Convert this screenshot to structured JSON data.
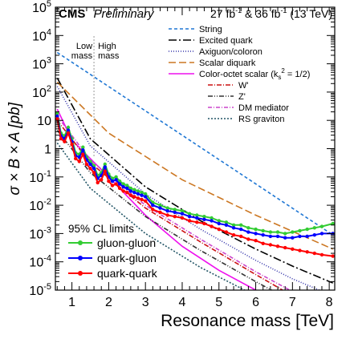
{
  "chart_data": {
    "type": "line",
    "header": {
      "experiment": "CMS",
      "status": "Preliminary",
      "lumi_text": "27 fb",
      "lumi_exp1": "-1",
      "lumi_mid": " & 36 fb",
      "lumi_exp2": "-1",
      "energy": " (13 TeV)"
    },
    "xlabel": "Resonance mass [TeV]",
    "ylabel": "σ × B × A [pb]",
    "xlim": [
      0.55,
      8.15
    ],
    "ylim_log10": [
      -5,
      5
    ],
    "xticks": [
      1,
      2,
      3,
      4,
      5,
      6,
      7,
      8
    ],
    "xtick_labels": [
      "1",
      "2",
      "3",
      "4",
      "5",
      "6",
      "7",
      "8"
    ],
    "yticks_exp": [
      -5,
      -4,
      -3,
      -2,
      -1,
      0,
      1,
      2,
      3,
      4,
      5
    ],
    "ytick_labels": [
      "10",
      "10",
      "10",
      "10",
      "10",
      "1",
      "10",
      "10",
      "10",
      "10",
      "10"
    ],
    "ytick_exps": [
      "-5",
      "-4",
      "-3",
      "-2",
      "-1",
      "",
      "",
      "2",
      "3",
      "4",
      "5"
    ],
    "region_labels": {
      "low": [
        "Low",
        "mass"
      ],
      "high": [
        "High",
        "mass"
      ],
      "boundary_x": 1.6
    },
    "limits_title": "95% CL limits",
    "limit_series": [
      {
        "name": "gluon-gluon",
        "color": "#33cc33",
        "x": [
          0.6,
          0.7,
          0.8,
          0.9,
          1.0,
          1.1,
          1.2,
          1.3,
          1.4,
          1.5,
          1.6,
          1.7,
          1.8,
          1.9,
          2.0,
          2.1,
          2.2,
          2.3,
          2.4,
          2.5,
          2.6,
          2.7,
          2.8,
          2.9,
          3.0,
          3.2,
          3.4,
          3.6,
          3.8,
          4.0,
          4.2,
          4.4,
          4.6,
          4.8,
          5.0,
          5.2,
          5.4,
          5.6,
          5.8,
          6.0,
          6.2,
          6.4,
          6.6,
          6.8,
          7.0,
          7.2,
          7.4,
          7.6,
          7.8,
          8.1
        ],
        "logy": [
          1.25,
          0.55,
          0.45,
          0.75,
          0.35,
          -0.15,
          -0.2,
          0.05,
          -0.3,
          -0.45,
          -0.6,
          -0.95,
          -0.85,
          -0.55,
          -0.9,
          -1.05,
          -1.0,
          -1.15,
          -1.25,
          -1.3,
          -1.4,
          -1.45,
          -1.5,
          -1.55,
          -1.6,
          -1.9,
          -2.0,
          -2.1,
          -2.15,
          -2.2,
          -2.3,
          -2.35,
          -2.4,
          -2.45,
          -2.55,
          -2.6,
          -2.7,
          -2.7,
          -2.8,
          -2.85,
          -2.9,
          -2.95,
          -2.95,
          -3.0,
          -2.95,
          -2.9,
          -2.85,
          -2.8,
          -2.75,
          -2.65
        ]
      },
      {
        "name": "quark-gluon",
        "color": "#0000ff",
        "x": [
          0.6,
          0.7,
          0.8,
          0.9,
          1.0,
          1.1,
          1.2,
          1.3,
          1.4,
          1.5,
          1.6,
          1.7,
          1.8,
          1.9,
          2.0,
          2.1,
          2.2,
          2.3,
          2.4,
          2.5,
          2.6,
          2.7,
          2.8,
          2.9,
          3.0,
          3.2,
          3.4,
          3.6,
          3.8,
          4.0,
          4.2,
          4.4,
          4.6,
          4.8,
          5.0,
          5.2,
          5.4,
          5.6,
          5.8,
          6.0,
          6.2,
          6.4,
          6.6,
          6.8,
          7.0,
          7.2,
          7.4,
          7.6,
          7.8,
          8.1
        ],
        "logy": [
          1.15,
          0.45,
          0.35,
          0.65,
          0.25,
          -0.25,
          -0.3,
          -0.05,
          -0.4,
          -0.55,
          -0.7,
          -1.05,
          -0.95,
          -0.65,
          -1.0,
          -1.15,
          -1.1,
          -1.25,
          -1.35,
          -1.4,
          -1.5,
          -1.55,
          -1.6,
          -1.65,
          -1.7,
          -2.0,
          -2.1,
          -2.2,
          -2.25,
          -2.3,
          -2.4,
          -2.45,
          -2.5,
          -2.55,
          -2.65,
          -2.7,
          -2.8,
          -2.85,
          -2.95,
          -3.0,
          -3.05,
          -3.1,
          -3.1,
          -3.15,
          -3.15,
          -3.1,
          -3.1,
          -3.05,
          -3.0,
          -3.0
        ]
      },
      {
        "name": "quark-quark",
        "color": "#ff0000",
        "x": [
          0.6,
          0.7,
          0.8,
          0.9,
          1.0,
          1.1,
          1.2,
          1.3,
          1.4,
          1.5,
          1.6,
          1.7,
          1.8,
          1.9,
          2.0,
          2.1,
          2.2,
          2.3,
          2.4,
          2.5,
          2.6,
          2.7,
          2.8,
          2.9,
          3.0,
          3.2,
          3.4,
          3.6,
          3.8,
          4.0,
          4.2,
          4.4,
          4.6,
          4.8,
          5.0,
          5.2,
          5.4,
          5.6,
          5.8,
          6.0,
          6.2,
          6.4,
          6.6,
          6.8,
          7.0,
          7.2,
          7.4,
          7.6,
          7.8,
          8.1
        ],
        "logy": [
          1.05,
          0.35,
          0.25,
          0.55,
          0.15,
          -0.35,
          -0.45,
          -0.2,
          -0.55,
          -0.7,
          -0.85,
          -1.2,
          -1.1,
          -0.8,
          -1.15,
          -1.3,
          -1.25,
          -1.4,
          -1.5,
          -1.55,
          -1.65,
          -1.7,
          -1.75,
          -1.8,
          -1.85,
          -2.15,
          -2.25,
          -2.35,
          -2.4,
          -2.45,
          -2.55,
          -2.6,
          -2.65,
          -2.75,
          -2.85,
          -2.95,
          -3.05,
          -3.1,
          -3.2,
          -3.25,
          -3.35,
          -3.4,
          -3.45,
          -3.5,
          -3.55,
          -3.6,
          -3.65,
          -3.7,
          -3.75,
          -3.8
        ]
      }
    ],
    "theory_series": [
      {
        "name": "String",
        "color": "#1f77d4",
        "dash": "4,3",
        "legend_x": 248,
        "x": [
          0.6,
          8.1
        ],
        "logy": [
          3.4,
          -3.05
        ]
      },
      {
        "name": "Excited quark",
        "color": "#000000",
        "dash": "10,3,2,3",
        "legend_x": 248,
        "x": [
          0.6,
          1.5,
          3.0,
          4.5,
          6.0,
          7.0,
          8.1
        ],
        "logy": [
          2.5,
          0.35,
          -1.35,
          -2.55,
          -3.55,
          -4.15,
          -4.75
        ]
      },
      {
        "name": "Axiguon/coloron",
        "color": "#3333aa",
        "dash": "1,2",
        "legend_x": 248,
        "x": [
          0.6,
          1.5,
          3.0,
          4.5,
          6.0,
          7.0,
          8.1
        ],
        "logy": [
          2.2,
          0.1,
          -1.6,
          -2.85,
          -3.95,
          -4.6,
          -5.2
        ]
      },
      {
        "name": "Scalar diquark",
        "color": "#cc7722",
        "dash": "9,4",
        "legend_x": 248,
        "x": [
          0.6,
          2.0,
          4.0,
          6.0,
          8.1
        ],
        "logy": [
          2.35,
          0.55,
          -1.1,
          -2.35,
          -3.55
        ]
      },
      {
        "name": "Color-octet scalar (k",
        "name_sub": "s",
        "name_sup": "2",
        "name_tail": " = 1/2)",
        "color": "#ee11ee",
        "dash": "",
        "legend_x": 248,
        "x": [
          0.6,
          1.0,
          2.0,
          3.0,
          4.0,
          5.0,
          6.0,
          6.6
        ],
        "logy": [
          1.4,
          0.3,
          -1.0,
          -2.35,
          -3.45,
          -4.3,
          -5.0,
          -5.4
        ]
      },
      {
        "name": "W'",
        "color": "#cc1111",
        "dash": "6,2,1,2",
        "legend_x": 297,
        "x": [
          0.6,
          1.5,
          3.0,
          4.5,
          6.0,
          7.0
        ],
        "logy": [
          1.0,
          -0.5,
          -2.1,
          -3.3,
          -4.45,
          -5.2
        ]
      },
      {
        "name": "Z'",
        "color": "#333333",
        "dash": "6,2,1,2,1,2",
        "legend_x": 297,
        "x": [
          0.6,
          1.5,
          3.0,
          4.5,
          6.0,
          7.0
        ],
        "logy": [
          0.65,
          -0.85,
          -2.4,
          -3.6,
          -4.7,
          -5.4
        ]
      },
      {
        "name": "DM mediator",
        "color": "#cc44cc",
        "dash": "5,2,1,2",
        "legend_x": 297,
        "x": [
          0.6,
          1.5,
          3.0,
          4.5,
          6.0,
          7.0
        ],
        "logy": [
          1.15,
          -0.4,
          -2.0,
          -3.2,
          -4.35,
          -5.05
        ]
      },
      {
        "name": "RS graviton",
        "color": "#225566",
        "dash": "2,2",
        "legend_x": 297,
        "x": [
          0.6,
          1.5,
          3.0,
          4.5,
          6.0,
          6.8
        ],
        "logy": [
          0.2,
          -1.4,
          -3.0,
          -4.2,
          -5.2,
          -5.7
        ]
      }
    ]
  }
}
